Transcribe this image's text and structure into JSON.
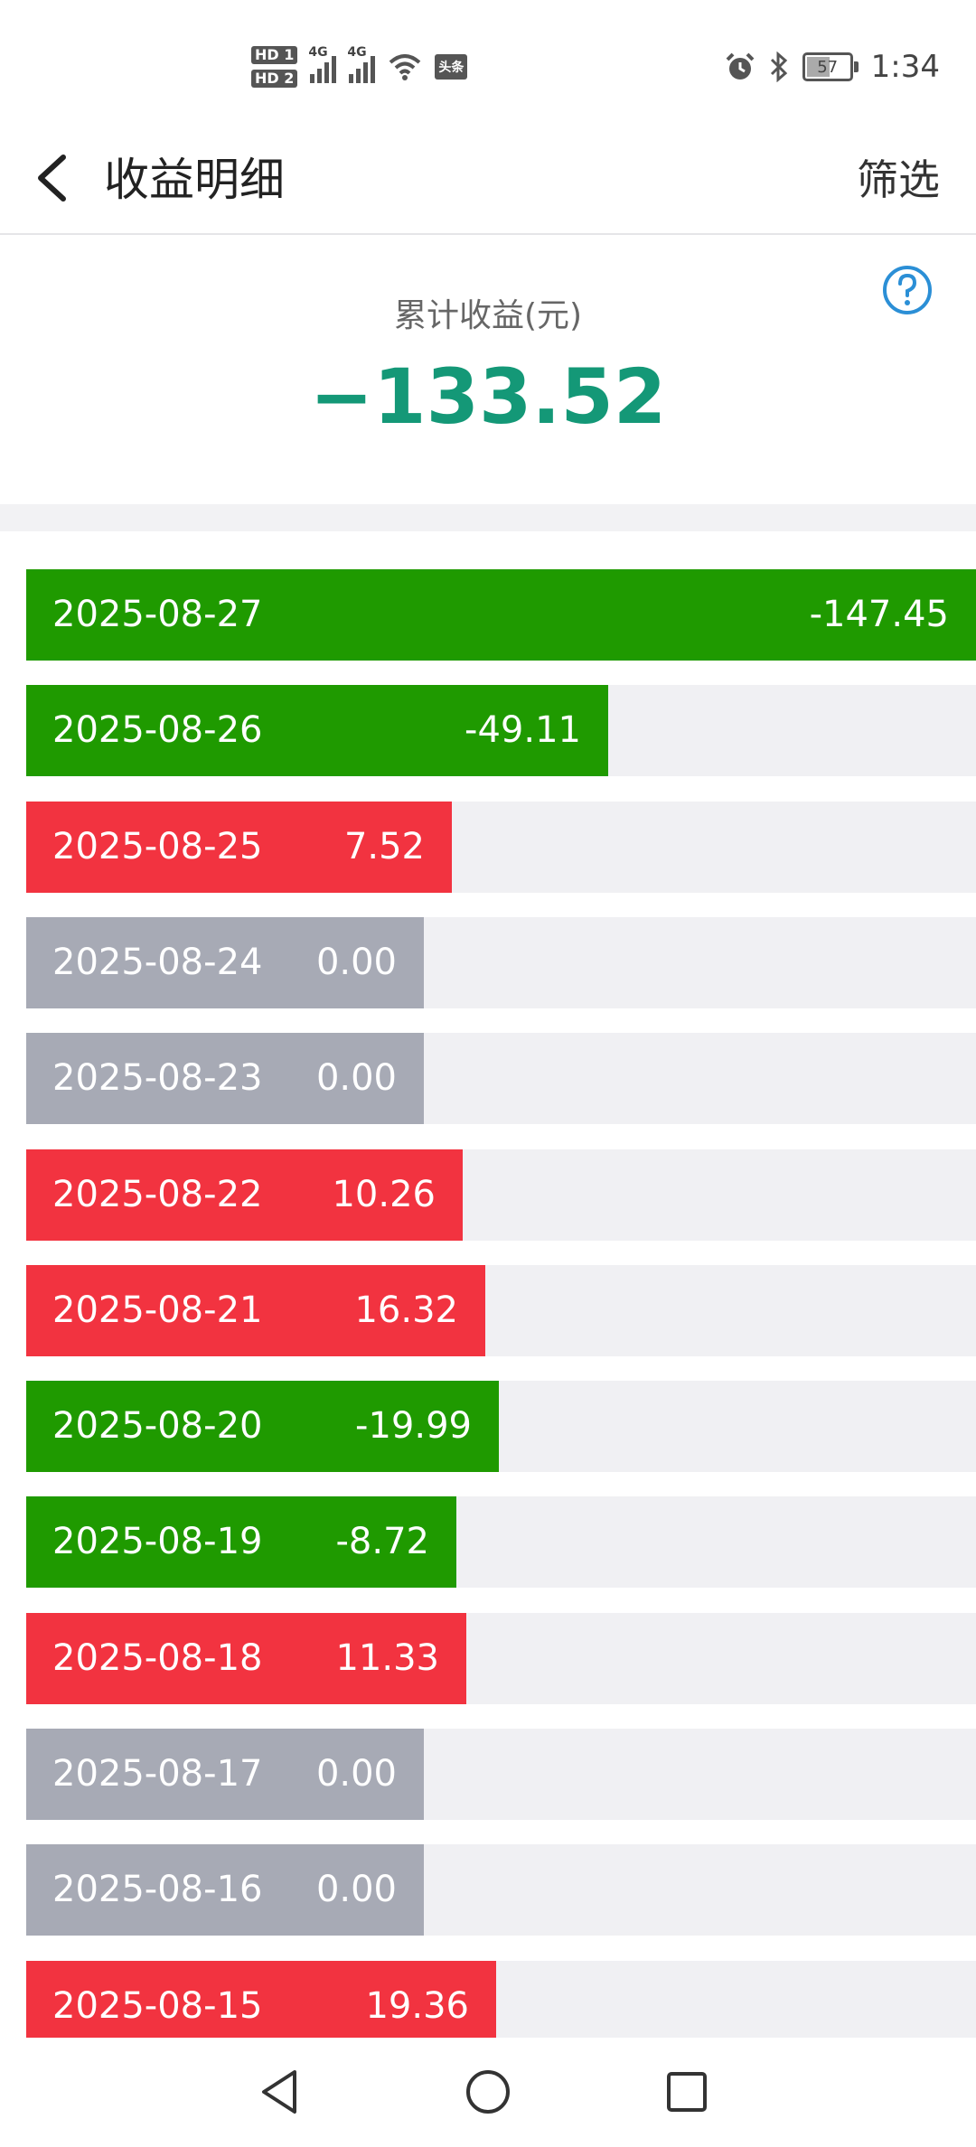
{
  "status_bar": {
    "hd1": "HD 1",
    "hd2": "HD 2",
    "sig1": "4G",
    "sig2": "4G",
    "app_badge": "头条",
    "battery": "57",
    "battery_level": 0.57,
    "time": "1:34"
  },
  "header": {
    "title": "收益明细",
    "filter_label": "筛选"
  },
  "summary": {
    "label": "累计收益(元)",
    "value": "−133.52",
    "value_color": "#149877"
  },
  "colors": {
    "loss": "#1f9a00",
    "gain": "#f23340",
    "zero": "#a7aab5",
    "track": "#f0f0f3",
    "help": "#2b8fd6"
  },
  "rows": [
    {
      "date": "2025-08-27",
      "value": "-147.45",
      "amount": -147.45
    },
    {
      "date": "2025-08-26",
      "value": "-49.11",
      "amount": -49.11
    },
    {
      "date": "2025-08-25",
      "value": "7.52",
      "amount": 7.52
    },
    {
      "date": "2025-08-24",
      "value": "0.00",
      "amount": 0
    },
    {
      "date": "2025-08-23",
      "value": "0.00",
      "amount": 0
    },
    {
      "date": "2025-08-22",
      "value": "10.26",
      "amount": 10.26
    },
    {
      "date": "2025-08-21",
      "value": "16.32",
      "amount": 16.32
    },
    {
      "date": "2025-08-20",
      "value": "-19.99",
      "amount": -19.99
    },
    {
      "date": "2025-08-19",
      "value": "-8.72",
      "amount": -8.72
    },
    {
      "date": "2025-08-18",
      "value": "11.33",
      "amount": 11.33
    },
    {
      "date": "2025-08-17",
      "value": "0.00",
      "amount": 0
    },
    {
      "date": "2025-08-16",
      "value": "0.00",
      "amount": 0
    },
    {
      "date": "2025-08-15",
      "value": "19.36",
      "amount": 19.36
    }
  ],
  "nav": {
    "back_icon": "triangle-back-icon",
    "home_icon": "circle-home-icon",
    "recents_icon": "square-recents-icon"
  }
}
